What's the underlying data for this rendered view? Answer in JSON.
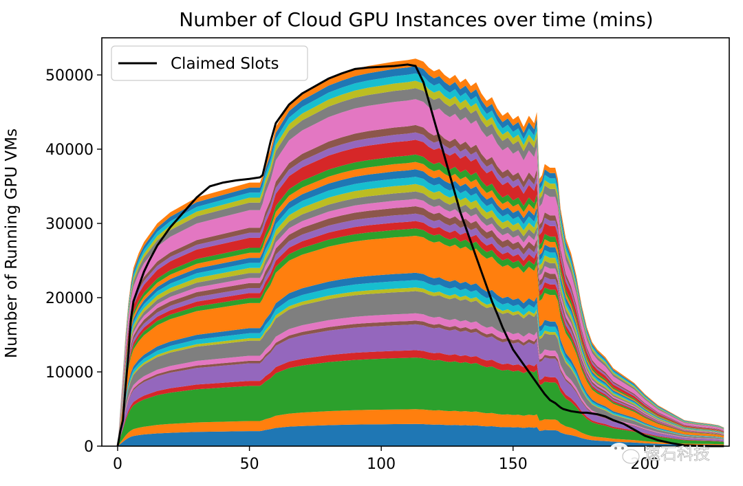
{
  "chart_data": {
    "type": "area",
    "title": "Number of Cloud GPU Instances over time (mins)",
    "xlabel": "",
    "ylabel": "Number of Running GPU VMs",
    "xlim": [
      -6,
      232
    ],
    "ylim": [
      0,
      55000
    ],
    "xticks": [
      0,
      50,
      100,
      150,
      200
    ],
    "yticks": [
      0,
      10000,
      20000,
      30000,
      40000,
      50000
    ],
    "grid": false,
    "legend": {
      "placement": "top-left",
      "entries": [
        "Claimed Slots"
      ]
    },
    "x": [
      0,
      1,
      2,
      3,
      4,
      5,
      6,
      8,
      10,
      12,
      15,
      20,
      25,
      30,
      35,
      40,
      45,
      50,
      54,
      55,
      56,
      58,
      60,
      65,
      70,
      75,
      80,
      85,
      90,
      95,
      100,
      105,
      110,
      113,
      116,
      118,
      120,
      122,
      124,
      126,
      128,
      130,
      132,
      134,
      136,
      138,
      140,
      142,
      144,
      146,
      148,
      150,
      152,
      154,
      156,
      158,
      159,
      160,
      161,
      162,
      164,
      166,
      167,
      168,
      169,
      170,
      172,
      174,
      176,
      178,
      180,
      182,
      185,
      188,
      192,
      196,
      200,
      205,
      210,
      215,
      220,
      225,
      228,
      230
    ],
    "total_vms": [
      0,
      5000,
      10000,
      15000,
      19000,
      22000,
      24000,
      26000,
      27500,
      28500,
      30000,
      31500,
      32500,
      33500,
      34000,
      34500,
      35000,
      35500,
      35500,
      36500,
      38000,
      40000,
      43000,
      46000,
      47500,
      48500,
      49500,
      50200,
      50800,
      51200,
      51500,
      51800,
      52000,
      52200,
      51800,
      51000,
      50500,
      50800,
      50000,
      49500,
      50000,
      49000,
      49500,
      48500,
      49000,
      47500,
      46500,
      47000,
      45500,
      44500,
      45000,
      44000,
      44500,
      43000,
      44500,
      43500,
      45000,
      36000,
      36500,
      38000,
      37500,
      37500,
      36000,
      32000,
      30000,
      28000,
      26000,
      23000,
      19000,
      16000,
      14000,
      13000,
      12000,
      10500,
      9500,
      8500,
      7000,
      5500,
      4500,
      3500,
      3200,
      3000,
      2800,
      2500
    ],
    "series": [
      {
        "name": "Claimed Slots",
        "color": "#000000",
        "values": [
          0,
          2000,
          3500,
          8000,
          12000,
          17000,
          19500,
          21500,
          23500,
          25000,
          27000,
          29500,
          31500,
          33500,
          35000,
          35500,
          35800,
          36000,
          36200,
          36500,
          38000,
          41000,
          43500,
          46000,
          47500,
          48500,
          49500,
          50200,
          50800,
          51000,
          51100,
          51200,
          51400,
          51200,
          49000,
          46500,
          44000,
          41500,
          39000,
          36500,
          34000,
          31500,
          29500,
          27500,
          25500,
          23500,
          21500,
          19500,
          17800,
          16000,
          14500,
          13000,
          12000,
          11000,
          10000,
          9000,
          8500,
          8000,
          7500,
          7000,
          6200,
          5800,
          5500,
          5200,
          5000,
          4900,
          4700,
          4600,
          4500,
          4500,
          4400,
          4300,
          4000,
          3500,
          3000,
          2200,
          1400,
          800,
          400,
          100,
          50,
          0,
          0,
          0
        ]
      }
    ],
    "layer_colors": [
      "#1f77b4",
      "#ff7f0e",
      "#2ca02c",
      "#d62728",
      "#9467bd",
      "#8c564b",
      "#e377c2",
      "#7f7f7f",
      "#bcbd22",
      "#17becf"
    ],
    "layer_weights": [
      6,
      4,
      14,
      2,
      7,
      1,
      2,
      6,
      1,
      2,
      2,
      10,
      2,
      2,
      2,
      2,
      2,
      2,
      2,
      2,
      2,
      2,
      2,
      4,
      2,
      2,
      7,
      3,
      2,
      2,
      2,
      2
    ]
  },
  "watermark": {
    "text": "速石科技",
    "icon": "wechat-icon"
  }
}
